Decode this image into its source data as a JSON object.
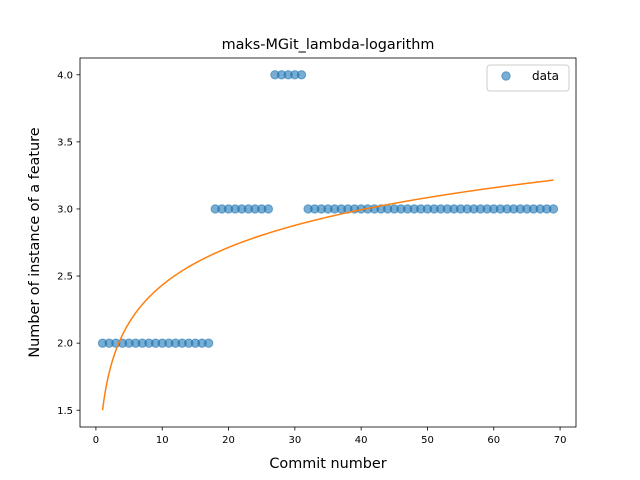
{
  "chart_data": {
    "type": "scatter",
    "title": "maks-MGit_lambda-logarithm",
    "xlabel": "Commit number",
    "ylabel": "Number of instance of a feature",
    "xlim": [
      -2.4,
      72.4
    ],
    "ylim": [
      1.375,
      4.125
    ],
    "xticks": [
      0,
      10,
      20,
      30,
      40,
      50,
      60,
      70
    ],
    "yticks": [
      1.5,
      2.0,
      2.5,
      3.0,
      3.5,
      4.0
    ],
    "ytick_labels": [
      "1.5",
      "2.0",
      "2.5",
      "3.0",
      "3.5",
      "4.0"
    ],
    "legend_position": "upper right",
    "grid": false,
    "series": [
      {
        "name": "data",
        "kind": "scatter",
        "color": "#1f77b4",
        "alpha": 0.6,
        "x": [
          1,
          2,
          3,
          4,
          5,
          6,
          7,
          8,
          9,
          10,
          11,
          12,
          13,
          14,
          15,
          16,
          17,
          18,
          19,
          20,
          21,
          22,
          23,
          24,
          25,
          26,
          27,
          28,
          29,
          30,
          31,
          32,
          33,
          34,
          35,
          36,
          37,
          38,
          39,
          40,
          41,
          42,
          43,
          44,
          45,
          46,
          47,
          48,
          49,
          50,
          51,
          52,
          53,
          54,
          55,
          56,
          57,
          58,
          59,
          60,
          61,
          62,
          63,
          64,
          65,
          66,
          67,
          68,
          69
        ],
        "y": [
          2,
          2,
          2,
          2,
          2,
          2,
          2,
          2,
          2,
          2,
          2,
          2,
          2,
          2,
          2,
          2,
          2,
          3,
          3,
          3,
          3,
          3,
          3,
          3,
          3,
          3,
          4,
          4,
          4,
          4,
          4,
          3,
          3,
          3,
          3,
          3,
          3,
          3,
          3,
          3,
          3,
          3,
          3,
          3,
          3,
          3,
          3,
          3,
          3,
          3,
          3,
          3,
          3,
          3,
          3,
          3,
          3,
          3,
          3,
          3,
          3,
          3,
          3,
          3,
          3,
          3,
          3,
          3,
          3
        ]
      },
      {
        "kind": "line",
        "color": "#ff7f0e",
        "fit": "logarithmic",
        "coefficients": {
          "a": 1.5,
          "b": 0.405
        },
        "x_range": [
          1,
          69
        ]
      }
    ]
  }
}
